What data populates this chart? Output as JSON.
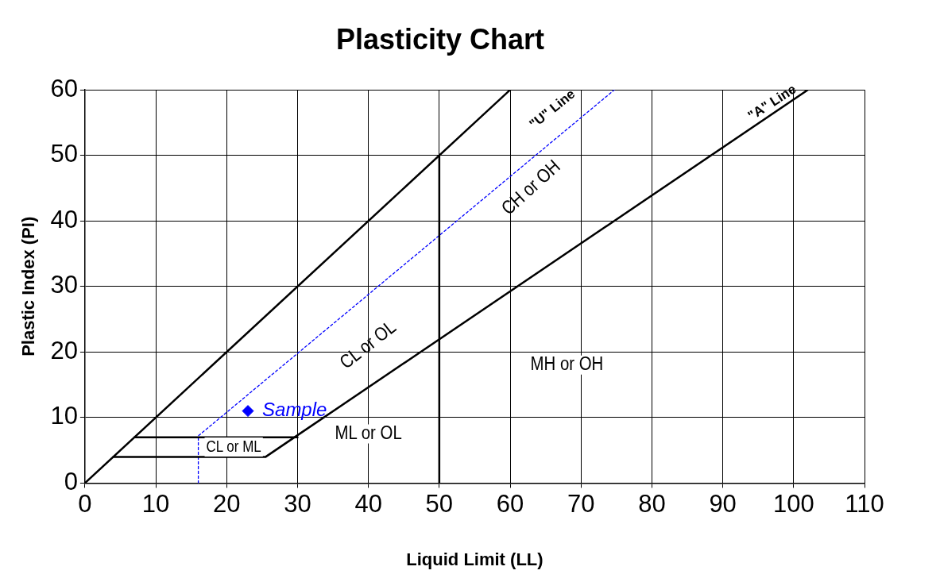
{
  "chart_data": {
    "type": "line",
    "title": "Plasticity Chart",
    "xlabel": "Liquid Limit (LL)",
    "ylabel": "Plastic Index (PI)",
    "xlim": [
      0,
      110
    ],
    "xticks": [
      0,
      10,
      20,
      30,
      40,
      50,
      60,
      70,
      80,
      90,
      100,
      110
    ],
    "ylim": [
      0,
      60
    ],
    "yticks": [
      0,
      10,
      20,
      30,
      40,
      50,
      60
    ],
    "grid": true,
    "legend": false,
    "series": [
      {
        "color": "#000000",
        "x": [
          0,
          60
        ],
        "values": [
          0,
          60
        ],
        "marker": "none",
        "line_style": "solid"
      },
      {
        "color": "#000000",
        "x": [
          4,
          25.5,
          30,
          102
        ],
        "values": [
          4,
          4,
          7.3,
          60
        ],
        "marker": "none",
        "line_style": "solid"
      },
      {
        "color": "#000000",
        "x": [
          7,
          30
        ],
        "values": [
          7,
          7
        ],
        "marker": "none",
        "line_style": "solid"
      },
      {
        "color": "#000000",
        "x": [
          50,
          50
        ],
        "values": [
          0,
          50
        ],
        "marker": "none",
        "line_style": "solid"
      },
      {
        "color": "#0000ff",
        "x": [
          16,
          16,
          74.7
        ],
        "values": [
          0,
          7.2,
          60
        ],
        "marker": "none",
        "line_style": "dotted"
      },
      {
        "type": "scatter",
        "name": "Sample",
        "color": "#0000ff",
        "x": [
          23
        ],
        "values": [
          11
        ],
        "marker": "diamond"
      }
    ],
    "annotations": [
      "\"U\" Line",
      "\"A\" Line",
      "CH or OH",
      "CL or OL",
      "MH or OH",
      "ML or OL",
      "CL or ML"
    ]
  }
}
